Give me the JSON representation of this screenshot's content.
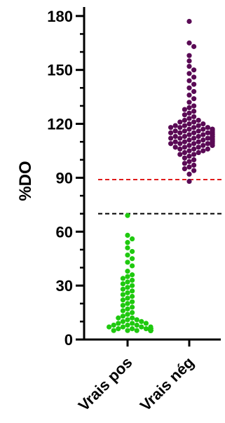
{
  "chart_data": {
    "type": "scatter",
    "subtype": "beeswarm",
    "title": "",
    "xlabel": "",
    "ylabel": "%DO",
    "categories": [
      "Vrais pos",
      "Vrais nég"
    ],
    "ylim": [
      0,
      185
    ],
    "yticks": [
      0,
      30,
      60,
      90,
      120,
      150,
      180
    ],
    "y_minor_step": 10,
    "grid": false,
    "colors": {
      "vrais_pos": "#1fc90f",
      "vrais_neg": "#5a0a55",
      "threshold_high": "#e01b1b",
      "threshold_low": "#000000"
    },
    "thresholds": [
      {
        "value": 89,
        "color": "#e01b1b",
        "style": "dashed"
      },
      {
        "value": 70,
        "color": "#000000",
        "style": "dashed"
      }
    ],
    "series": [
      {
        "category": "Vrais pos",
        "color_key": "vrais_pos",
        "values": [
          69,
          58,
          56,
          54,
          51,
          49,
          47,
          45,
          43,
          41,
          38,
          36,
          35,
          34,
          33,
          32,
          31,
          30,
          29,
          28,
          27,
          26,
          25,
          24,
          23,
          22,
          21,
          20,
          19,
          18,
          17,
          16,
          15,
          14,
          13,
          12,
          12,
          11,
          11,
          10,
          10,
          9,
          9,
          9,
          8,
          8,
          8,
          7,
          7,
          7,
          7,
          6,
          6,
          6,
          6,
          6,
          6,
          6,
          6,
          6,
          6,
          6,
          6,
          6,
          6,
          6,
          6,
          6,
          6,
          6,
          5,
          5,
          5,
          5,
          5,
          5,
          5,
          5,
          5,
          5,
          5,
          5,
          5,
          5,
          5,
          5,
          5,
          5,
          5,
          5,
          5,
          5,
          5,
          5,
          5,
          5,
          5,
          5,
          5,
          5,
          5,
          5,
          5,
          5,
          5,
          5,
          5,
          5,
          5,
          5
        ]
      },
      {
        "category": "Vrais nég",
        "color_key": "vrais_neg",
        "values": [
          177,
          165,
          163,
          158,
          155,
          152,
          150,
          148,
          146,
          144,
          142,
          140,
          138,
          136,
          134,
          132,
          130,
          129,
          128,
          127,
          126,
          125,
          124,
          123,
          122,
          122,
          121,
          121,
          120,
          120,
          119,
          119,
          119,
          118,
          118,
          118,
          118,
          117,
          117,
          117,
          117,
          117,
          116,
          116,
          116,
          116,
          116,
          116,
          115,
          115,
          115,
          115,
          115,
          115,
          115,
          115,
          114,
          114,
          114,
          114,
          114,
          114,
          114,
          114,
          114,
          113,
          113,
          113,
          113,
          113,
          113,
          113,
          113,
          113,
          112,
          112,
          112,
          112,
          112,
          112,
          112,
          112,
          111,
          111,
          111,
          111,
          111,
          111,
          111,
          110,
          110,
          110,
          110,
          110,
          110,
          109,
          109,
          109,
          109,
          109,
          108,
          108,
          108,
          108,
          107,
          107,
          107,
          106,
          106,
          106,
          105,
          105,
          104,
          104,
          103,
          103,
          102,
          101,
          100,
          99,
          98,
          97,
          96,
          95,
          94,
          92,
          88
        ]
      }
    ]
  }
}
